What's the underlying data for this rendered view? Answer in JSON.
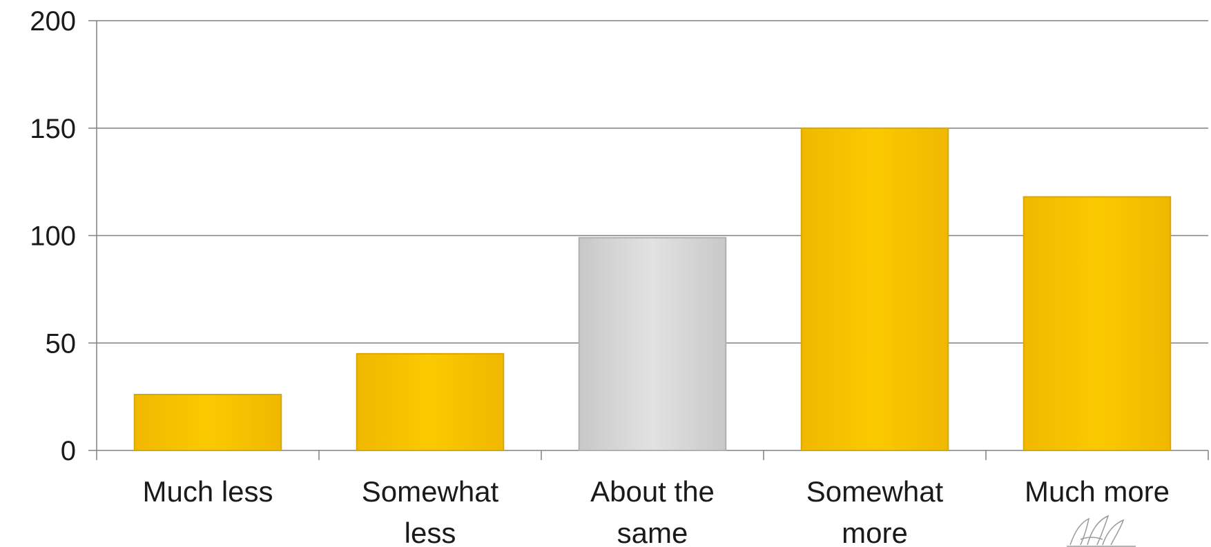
{
  "chart_data": {
    "type": "bar",
    "title": "",
    "xlabel": "",
    "ylabel": "",
    "categories": [
      [
        "Much less"
      ],
      [
        "Somewhat",
        "less"
      ],
      [
        "About the",
        "same"
      ],
      [
        "Somewhat",
        "more"
      ],
      [
        "Much more"
      ]
    ],
    "values": [
      26,
      45,
      99,
      150,
      118
    ],
    "ylim": [
      0,
      200
    ],
    "yticks": [
      0,
      50,
      100,
      150,
      200
    ],
    "grid": true,
    "legend": "none",
    "colors": {
      "bar": "#f8c300",
      "bar_edge": "#d9a800",
      "highlight_bar": "#d9d9d9",
      "highlight_edge": "#b0b0b0",
      "grid": "#808080",
      "axis": "#808080"
    },
    "highlight_index": 2
  }
}
